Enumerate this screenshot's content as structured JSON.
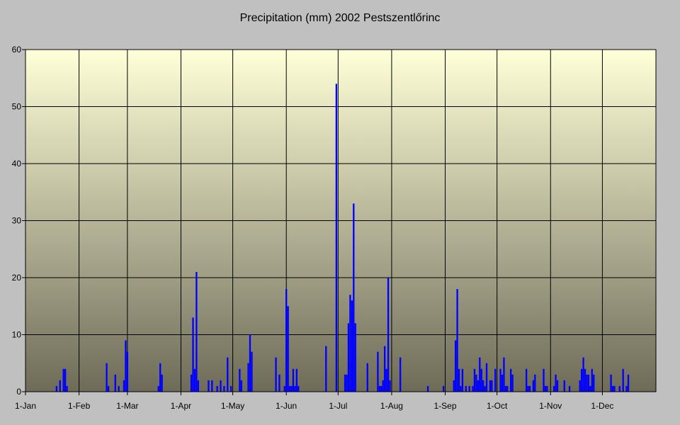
{
  "chart_data": {
    "type": "bar",
    "title": "Precipitation (mm) 2002 Pestszentlőrinc",
    "xlabel": "",
    "ylabel": "",
    "ylim": [
      0,
      60
    ],
    "y_ticks": [
      0,
      10,
      20,
      30,
      40,
      50,
      60
    ],
    "x_range_days": [
      1,
      366
    ],
    "x_ticks": [
      {
        "label": "1-Jan",
        "day": 1
      },
      {
        "label": "1-Feb",
        "day": 32
      },
      {
        "label": "1-Mar",
        "day": 60
      },
      {
        "label": "1-Apr",
        "day": 91
      },
      {
        "label": "1-May",
        "day": 121
      },
      {
        "label": "1-Jun",
        "day": 152
      },
      {
        "label": "1-Jul",
        "day": 182
      },
      {
        "label": "1-Aug",
        "day": 213
      },
      {
        "label": "1-Sep",
        "day": 244
      },
      {
        "label": "1-Oct",
        "day": 274
      },
      {
        "label": "1-Nov",
        "day": 305
      },
      {
        "label": "1-Dec",
        "day": 335
      }
    ],
    "grid": true,
    "legend": "none",
    "bar_color": "#0000ff",
    "background_gradient": [
      "#ffffd8",
      "#6e6b58"
    ],
    "series": [
      {
        "x": [
          19,
          21,
          23,
          24,
          25,
          48,
          49,
          53,
          55,
          58,
          59,
          60,
          78,
          79,
          80,
          97,
          98,
          99,
          100,
          101,
          107,
          109,
          112,
          114,
          116,
          118,
          120,
          125,
          126,
          130,
          131,
          132,
          146,
          148,
          151,
          152,
          153,
          154,
          155,
          156,
          157,
          158,
          159,
          175,
          181,
          186,
          187,
          188,
          189,
          190,
          191,
          192,
          199,
          205,
          206,
          207,
          208,
          209,
          210,
          211,
          212,
          218,
          234,
          243,
          249,
          250,
          251,
          252,
          253,
          254,
          256,
          258,
          260,
          261,
          262,
          263,
          264,
          265,
          266,
          267,
          268,
          270,
          271,
          273,
          276,
          277,
          278,
          279,
          280,
          282,
          283,
          291,
          292,
          293,
          295,
          296,
          301,
          302,
          303,
          307,
          308,
          309,
          313,
          316,
          322,
          323,
          324,
          325,
          326,
          327,
          328,
          329,
          330,
          340,
          341,
          342,
          345,
          347,
          349,
          350
        ],
        "values": [
          1,
          2,
          4,
          4,
          1,
          5,
          1,
          3,
          1,
          2,
          9,
          7,
          1,
          5,
          3,
          3,
          13,
          4,
          21,
          2,
          2,
          2,
          1,
          2,
          1,
          6,
          1,
          4,
          2,
          5,
          10,
          7,
          6,
          3,
          1,
          18,
          15,
          1,
          1,
          4,
          1,
          4,
          1,
          8,
          54,
          3,
          3,
          12,
          17,
          16,
          33,
          12,
          5,
          7,
          1,
          1,
          2,
          8,
          4,
          20,
          2,
          6,
          1,
          1,
          2,
          9,
          18,
          4,
          1,
          4,
          1,
          1,
          1,
          4,
          3,
          2,
          6,
          4,
          2,
          1,
          5,
          2,
          2,
          4,
          4,
          3,
          6,
          1,
          1,
          4,
          3,
          4,
          1,
          1,
          2,
          3,
          4,
          1,
          1,
          1,
          3,
          2,
          2,
          1,
          2,
          4,
          6,
          4,
          3,
          3,
          1,
          4,
          3,
          3,
          1,
          1,
          1,
          4,
          1,
          3
        ]
      }
    ]
  }
}
